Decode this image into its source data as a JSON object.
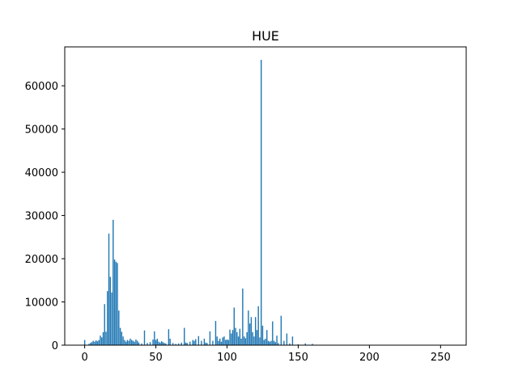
{
  "chart_data": {
    "type": "bar",
    "title": "HUE",
    "xlabel": "",
    "ylabel": "",
    "xlim": [
      -14,
      268
    ],
    "ylim": [
      0,
      69000
    ],
    "xticks": [
      0,
      50,
      100,
      150,
      200,
      250
    ],
    "yticks": [
      0,
      10000,
      20000,
      30000,
      40000,
      50000,
      60000
    ],
    "bar_color": "#1f77b4",
    "bar_width": 0.8,
    "grid": false,
    "legend": "none",
    "series": [
      {
        "x": [
          0,
          3,
          4,
          5,
          6,
          7,
          8,
          9,
          10,
          11,
          12,
          13,
          14,
          15,
          16,
          17,
          18,
          19,
          20,
          21,
          22,
          23,
          24,
          25,
          26,
          27,
          28,
          29,
          30,
          31,
          32,
          33,
          34,
          35,
          36,
          37,
          38,
          40,
          42,
          44,
          46,
          48,
          49,
          50,
          51,
          52,
          53,
          54,
          55,
          56,
          57,
          59,
          60,
          62,
          64,
          66,
          68,
          70,
          71,
          72,
          74,
          76,
          77,
          78,
          80,
          82,
          84,
          85,
          86,
          88,
          90,
          92,
          93,
          94,
          95,
          96,
          97,
          98,
          99,
          100,
          101,
          102,
          103,
          104,
          105,
          106,
          107,
          108,
          109,
          110,
          111,
          112,
          113,
          114,
          115,
          116,
          117,
          118,
          119,
          120,
          121,
          122,
          123,
          124,
          125,
          126,
          127,
          128,
          129,
          130,
          131,
          132,
          133,
          134,
          135,
          136,
          138,
          140,
          142,
          144,
          146,
          150,
          155,
          160
        ],
        "values": [
          1200,
          300,
          500,
          700,
          1000,
          800,
          1100,
          900,
          1200,
          2200,
          1800,
          3000,
          9500,
          3100,
          12500,
          25800,
          15800,
          12200,
          29000,
          19800,
          19300,
          19000,
          8000,
          4000,
          3100,
          2000,
          1200,
          800,
          1200,
          1000,
          1500,
          1200,
          1000,
          800,
          1300,
          1000,
          600,
          400,
          3400,
          500,
          700,
          1300,
          3200,
          1200,
          1500,
          800,
          600,
          900,
          700,
          500,
          400,
          3700,
          1500,
          500,
          300,
          400,
          600,
          4000,
          600,
          500,
          800,
          1200,
          1000,
          1400,
          2100,
          1000,
          1500,
          600,
          500,
          3200,
          1000,
          5600,
          2000,
          1000,
          1500,
          800,
          1800,
          2000,
          1200,
          1300,
          1200,
          3600,
          2700,
          3500,
          8700,
          4000,
          3000,
          2000,
          3800,
          1500,
          13100,
          2000,
          1600,
          3000,
          8000,
          5000,
          6500,
          3000,
          2000,
          6500,
          3500,
          9000,
          1800,
          66000,
          4500,
          1200,
          1500,
          3500,
          1000,
          800,
          1000,
          5500,
          1000,
          700,
          2200,
          500,
          6800,
          1000,
          2700,
          400,
          2000,
          200,
          400,
          300
        ]
      }
    ]
  }
}
